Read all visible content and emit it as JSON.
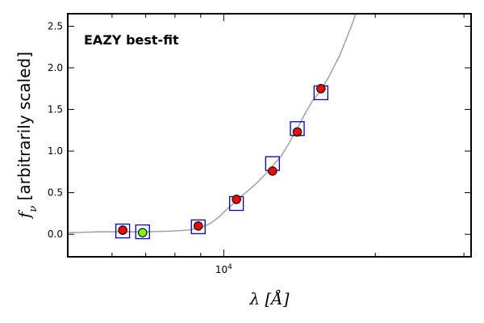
{
  "chart_data": {
    "type": "scatter",
    "x_scale": "log",
    "xlim_angstrom": [
      4900,
      31000
    ],
    "ylim": [
      -0.27,
      2.65
    ],
    "x_tick_major": [
      {
        "value": 10000,
        "label": "10^4"
      }
    ],
    "x_tick_minor": [
      6000,
      7000,
      8000,
      9000,
      20000,
      30000
    ],
    "y_ticks": [
      0.0,
      0.5,
      1.0,
      1.5,
      2.0,
      2.5
    ],
    "y_tick_labels": [
      "0.0",
      "0.5",
      "1.0",
      "1.5",
      "2.0",
      "2.5"
    ],
    "ylabel_sym": "f",
    "ylabel_sub": "ν",
    "ylabel_rest": " [arbitrarily scaled]",
    "xlabel_sym": "λ",
    "xlabel_rest": "[Å]",
    "annotation": "EAZY best-fit",
    "annotation_color": "#ff0000",
    "observed_points": [
      {
        "x": 6300,
        "y": 0.05,
        "err": 0.02,
        "color": "#ff0000"
      },
      {
        "x": 6900,
        "y": 0.02,
        "err": 0.02,
        "color": "#7cfc00"
      },
      {
        "x": 8900,
        "y": 0.1,
        "err": 0.02,
        "color": "#ff0000"
      },
      {
        "x": 10600,
        "y": 0.42,
        "err": 0.03,
        "color": "#ff0000"
      },
      {
        "x": 12500,
        "y": 0.76,
        "err": 0.05,
        "color": "#ff0000"
      },
      {
        "x": 14000,
        "y": 1.23,
        "err": 0.04,
        "color": "#ff0000"
      },
      {
        "x": 15600,
        "y": 1.75,
        "err": 0.03,
        "color": "#ff0000"
      }
    ],
    "model_points": [
      {
        "x": 6300,
        "y": 0.04
      },
      {
        "x": 6900,
        "y": 0.03
      },
      {
        "x": 8900,
        "y": 0.09
      },
      {
        "x": 10600,
        "y": 0.37
      },
      {
        "x": 12500,
        "y": 0.85
      },
      {
        "x": 14000,
        "y": 1.27
      },
      {
        "x": 15600,
        "y": 1.7
      }
    ],
    "model_sed": [
      [
        4900,
        0.02
      ],
      [
        5300,
        0.025
      ],
      [
        5700,
        0.03
      ],
      [
        6100,
        0.03
      ],
      [
        6500,
        0.03
      ],
      [
        7000,
        0.03
      ],
      [
        7500,
        0.035
      ],
      [
        8000,
        0.04
      ],
      [
        8500,
        0.05
      ],
      [
        9000,
        0.08
      ],
      [
        9400,
        0.13
      ],
      [
        9800,
        0.21
      ],
      [
        10100,
        0.29
      ],
      [
        10400,
        0.36
      ],
      [
        10800,
        0.45
      ],
      [
        11200,
        0.53
      ],
      [
        11600,
        0.61
      ],
      [
        12000,
        0.7
      ],
      [
        12500,
        0.82
      ],
      [
        13000,
        0.94
      ],
      [
        13500,
        1.1
      ],
      [
        14000,
        1.27
      ],
      [
        14500,
        1.45
      ],
      [
        15000,
        1.6
      ],
      [
        15600,
        1.73
      ],
      [
        16200,
        1.9
      ],
      [
        17000,
        2.15
      ],
      [
        17800,
        2.45
      ],
      [
        18300,
        2.65
      ]
    ],
    "colors": {
      "model_sed": "#a6a6a6",
      "model_box": "#0000cc",
      "frame": "#000000"
    }
  }
}
